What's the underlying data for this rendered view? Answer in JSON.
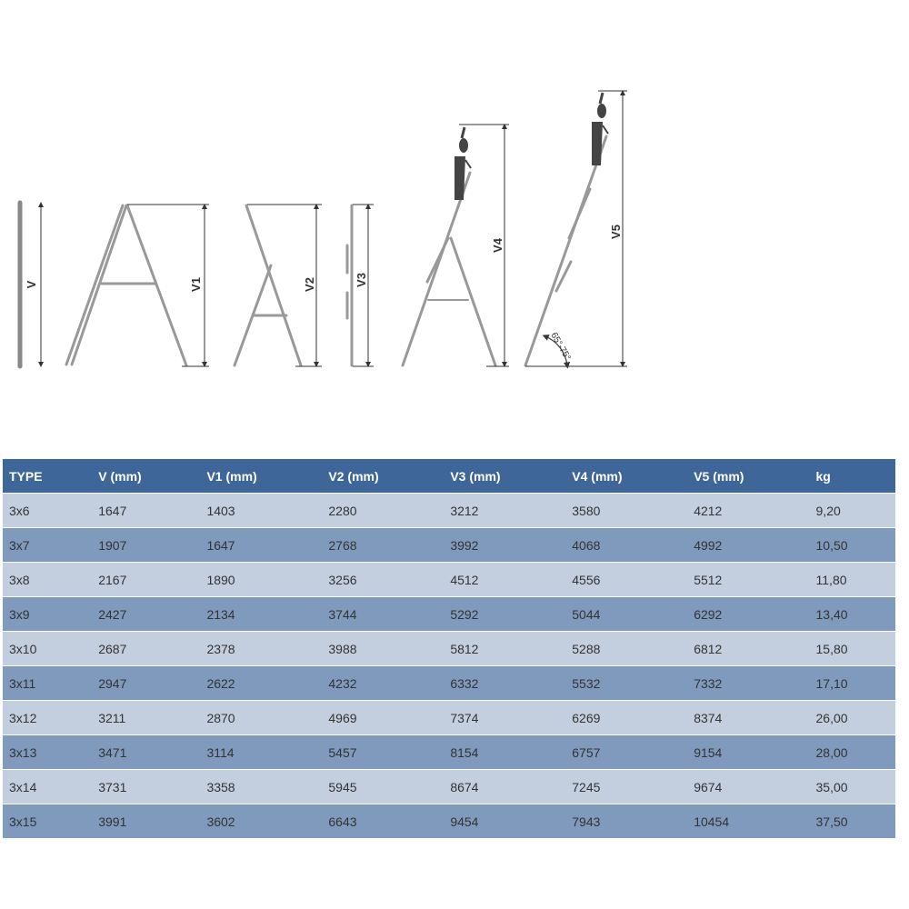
{
  "diagram": {
    "labels": {
      "v": "V",
      "v1": "V1",
      "v2": "V2",
      "v3": "V3",
      "v4": "V4",
      "v5": "V5"
    },
    "angle_label": "65°-75°"
  },
  "table": {
    "headers": [
      "TYPE",
      "V (mm)",
      "V1 (mm)",
      "V2 (mm)",
      "V3 (mm)",
      "V4 (mm)",
      "V5 (mm)",
      "kg"
    ],
    "rows": [
      [
        "3x6",
        "1647",
        "1403",
        "2280",
        "3212",
        "3580",
        "4212",
        "9,20"
      ],
      [
        "3x7",
        "1907",
        "1647",
        "2768",
        "3992",
        "4068",
        "4992",
        "10,50"
      ],
      [
        "3x8",
        "2167",
        "1890",
        "3256",
        "4512",
        "4556",
        "5512",
        "11,80"
      ],
      [
        "3x9",
        "2427",
        "2134",
        "3744",
        "5292",
        "5044",
        "6292",
        "13,40"
      ],
      [
        "3x10",
        "2687",
        "2378",
        "3988",
        "5812",
        "5288",
        "6812",
        "15,80"
      ],
      [
        "3x11",
        "2947",
        "2622",
        "4232",
        "6332",
        "5532",
        "7332",
        "17,10"
      ],
      [
        "3x12",
        "3211",
        "2870",
        "4969",
        "7374",
        "6269",
        "8374",
        "26,00"
      ],
      [
        "3x13",
        "3471",
        "3114",
        "5457",
        "8154",
        "6757",
        "9154",
        "28,00"
      ],
      [
        "3x14",
        "3731",
        "3358",
        "5945",
        "8674",
        "7245",
        "9674",
        "35,00"
      ],
      [
        "3x15",
        "3991",
        "3602",
        "6643",
        "9454",
        "7943",
        "10454",
        "37,50"
      ]
    ],
    "colors": {
      "header": "#3e6699",
      "row_light": "#c3cedf",
      "row_dark": "#7f9abd"
    }
  }
}
